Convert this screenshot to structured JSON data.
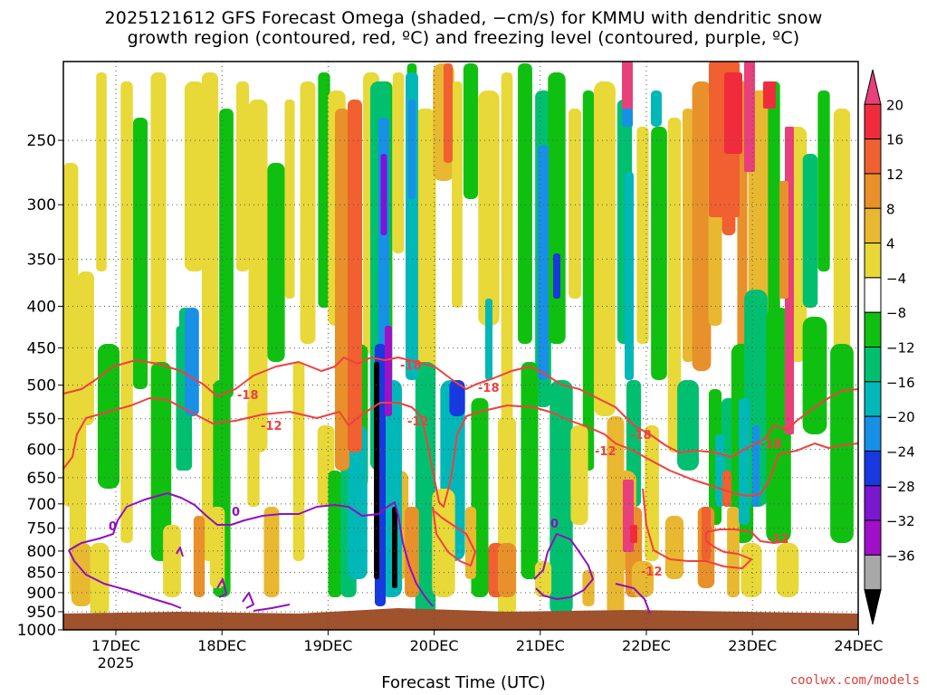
{
  "title_line1": "2025121612 GFS Forecast Omega (shaded, −cm/s) for KMMU with dendritic snow",
  "title_line2": "growth region (contoured, red, ºC) and freezing level (contoured, purple, ºC)",
  "xlabel": "Forecast Time (UTC)",
  "credit": "coolwx.com/models",
  "colors": {
    "contour_red": "#f04040",
    "contour_purple": "#9010c0",
    "ground": "#a0522d"
  },
  "chart_data": {
    "type": "heatmap",
    "y_axis_label_unit": "hPa",
    "y_scale": "log-pressure (inverted)",
    "ylim": [
      1000,
      200
    ],
    "y_ticks": [
      250,
      300,
      350,
      400,
      450,
      500,
      550,
      600,
      650,
      700,
      750,
      800,
      850,
      900,
      950,
      1000
    ],
    "x_ticks": [
      {
        "label": "17DEC",
        "sub": "2025"
      },
      {
        "label": "18DEC",
        "sub": ""
      },
      {
        "label": "19DEC",
        "sub": ""
      },
      {
        "label": "20DEC",
        "sub": ""
      },
      {
        "label": "21DEC",
        "sub": ""
      },
      {
        "label": "22DEC",
        "sub": ""
      },
      {
        "label": "23DEC",
        "sub": ""
      },
      {
        "label": "24DEC",
        "sub": ""
      }
    ],
    "grid": true,
    "colorbar": {
      "labels": [
        "20",
        "16",
        "12",
        "8",
        "4",
        "−4",
        "−8",
        "−12",
        "−16",
        "−20",
        "−24",
        "−28",
        "−32",
        "−36"
      ],
      "colors": [
        "#e8407a",
        "#f02c3c",
        "#f06030",
        "#e8902a",
        "#e8b830",
        "#e8d838",
        "#ffffff",
        "#10c010",
        "#00c070",
        "#00b8b8",
        "#1890e8",
        "#1838e0",
        "#7a18d0",
        "#a010c8",
        "#a8a8a8",
        "#000000"
      ]
    },
    "contour_labels": [
      {
        "value": "-18",
        "color": "red"
      },
      {
        "value": "-12",
        "color": "red"
      },
      {
        "value": "0",
        "color": "purple"
      }
    ]
  }
}
